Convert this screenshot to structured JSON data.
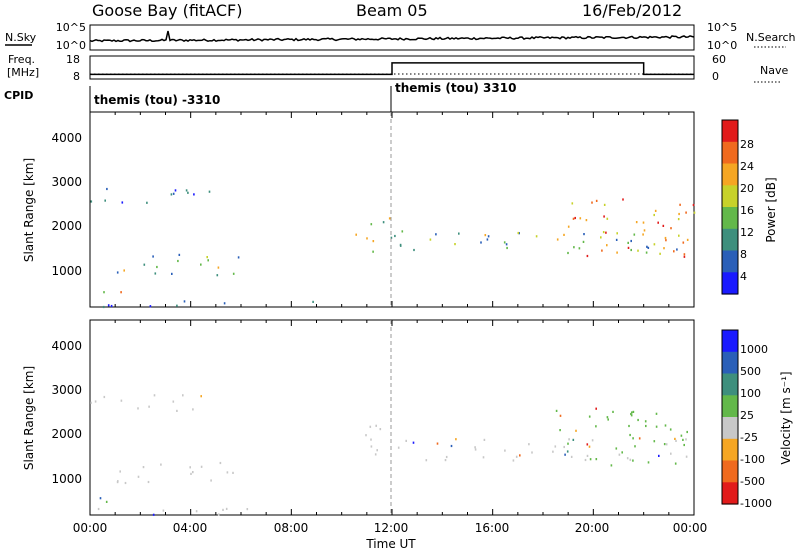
{
  "header": {
    "station": "Goose Bay (fitACF)",
    "beam": "Beam 05",
    "date": "16/Feb/2012"
  },
  "top_panels": {
    "nsky_label": "N.Sky",
    "nsearch_label": "N.Search",
    "nsky_ticks": [
      "10^5",
      "10^0"
    ],
    "nsky_right_ticks": [
      "10^5",
      "10^0"
    ],
    "freq_label_line1": "Freq.",
    "freq_label_line2": "[MHz]",
    "freq_ticks": [
      "18",
      "8"
    ],
    "nave_label": "Nave",
    "nave_ticks": [
      "60",
      "0"
    ],
    "cpid_label": "CPID",
    "cpid_segments": [
      {
        "label": "themis (tou) -3310",
        "start_hour": 0
      },
      {
        "label": "themis (tou) 3310",
        "start_hour": 12
      }
    ],
    "freq_step": {
      "low_mhz": 10,
      "high_mhz": 15,
      "change_hours": [
        12,
        22
      ]
    }
  },
  "power_panel": {
    "ylabel": "Slant Range [km]",
    "yticks": [
      "1000",
      "2000",
      "3000",
      "4000"
    ],
    "colorbar_label": "Power [dB]",
    "colorbar_ticks": [
      "4",
      "8",
      "12",
      "16",
      "20",
      "24",
      "28"
    ],
    "colors": [
      "#1a1aff",
      "#2a5fb8",
      "#3e8f7d",
      "#63b84a",
      "#c7d22a",
      "#f5a623",
      "#f06a1e",
      "#e21b1b"
    ]
  },
  "velocity_panel": {
    "ylabel": "Slant Range [km]",
    "yticks": [
      "1000",
      "2000",
      "3000",
      "4000"
    ],
    "colorbar_label": "Velocity [m s⁻¹]",
    "colorbar_ticks": [
      "1000",
      "500",
      "100",
      "25",
      "-25",
      "-100",
      "-500",
      "-1000"
    ],
    "colors": [
      "#1a1aff",
      "#2a5fb8",
      "#3e8f7d",
      "#63b84a",
      "#c8c8c8",
      "#f5a623",
      "#f06a1e",
      "#e21b1b"
    ]
  },
  "x_axis": {
    "label": "Time UT",
    "ticks": [
      "00:00",
      "04:00",
      "08:00",
      "12:00",
      "16:00",
      "20:00",
      "00:00"
    ]
  },
  "chart_data": [
    {
      "type": "heatmap",
      "title": "Goose Bay (fitACF) Beam 05 16/Feb/2012",
      "panel": "Power",
      "xlabel": "Time UT",
      "ylabel": "Slant Range [km]",
      "xlim_hours": [
        0,
        24
      ],
      "ylim_km": [
        180,
        4500
      ],
      "colorbar": {
        "label": "Power [dB]",
        "range": [
          0,
          30
        ]
      },
      "scatter_regions": [
        {
          "t": [
            0.0,
            4.8
          ],
          "r": [
            2500,
            2900
          ],
          "level": "low"
        },
        {
          "t": [
            0.0,
            1.3
          ],
          "r": [
            400,
            700
          ],
          "level": "high"
        },
        {
          "t": [
            0.0,
            9.0
          ],
          "r": [
            200,
            350
          ],
          "level": "low"
        },
        {
          "t": [
            1.0,
            6.2
          ],
          "r": [
            900,
            1400
          ],
          "level": "mid"
        },
        {
          "t": [
            10.5,
            12.0
          ],
          "r": [
            1300,
            2200
          ],
          "level": "mid"
        },
        {
          "t": [
            12.0,
            24.0
          ],
          "r": [
            1400,
            1900
          ],
          "level": "mid"
        },
        {
          "t": [
            18.5,
            24.0
          ],
          "r": [
            1300,
            2600
          ],
          "level": "high"
        }
      ]
    },
    {
      "type": "heatmap",
      "title": "",
      "panel": "Velocity",
      "xlabel": "Time UT",
      "ylabel": "Slant Range [km]",
      "xlim_hours": [
        0,
        24
      ],
      "ylim_km": [
        180,
        4500
      ],
      "colorbar": {
        "label": "Velocity [m s⁻¹]",
        "range": [
          -1000,
          1000
        ]
      },
      "scatter_regions": [
        {
          "t": [
            0.0,
            4.8
          ],
          "r": [
            2500,
            2900
          ],
          "level": "near-zero"
        },
        {
          "t": [
            0.0,
            1.3
          ],
          "r": [
            400,
            700
          ],
          "level": "positive"
        },
        {
          "t": [
            0.0,
            9.0
          ],
          "r": [
            200,
            350
          ],
          "level": "near-zero"
        },
        {
          "t": [
            1.0,
            6.2
          ],
          "r": [
            900,
            1400
          ],
          "level": "near-zero"
        },
        {
          "t": [
            10.5,
            12.0
          ],
          "r": [
            1300,
            2200
          ],
          "level": "near-zero"
        },
        {
          "t": [
            12.0,
            24.0
          ],
          "r": [
            1400,
            1900
          ],
          "level": "near-zero"
        },
        {
          "t": [
            18.5,
            24.0
          ],
          "r": [
            1300,
            2600
          ],
          "level": "positive"
        }
      ]
    }
  ]
}
